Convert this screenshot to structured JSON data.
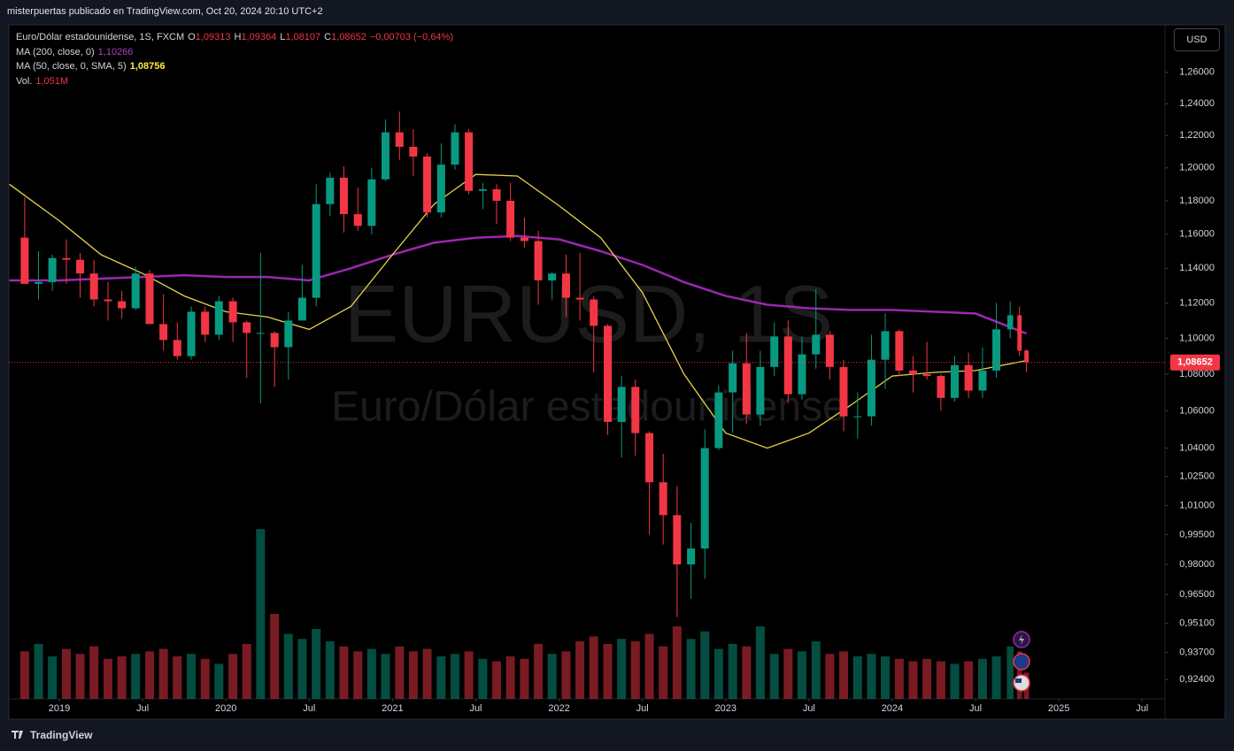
{
  "header": {
    "publisher": "misterpuertas publicado en TradingView.com, Oct 20, 2024 20:10 UTC+2",
    "currency": "USD",
    "footer": "TradingView"
  },
  "chart_data": {
    "type": "candlestick",
    "symbol": "Euro/Dólar estadounidense, 1S, FXCM",
    "ohlc_legend": [
      {
        "label": "O",
        "value": "1,09313"
      },
      {
        "label": "H",
        "value": "1,09364"
      },
      {
        "label": "L",
        "value": "1,08107"
      },
      {
        "label": "C",
        "value": "1,08652"
      }
    ],
    "change": "−0,00703 (−0,64%)",
    "watermark": [
      "EURUSD, 1S",
      "Euro/Dólar estadounidense"
    ],
    "last_price_label": "1,08652",
    "up_color": "#089981",
    "down_color": "#f23645",
    "x": [
      2018.792,
      2018.875,
      2018.958,
      2019.042,
      2019.125,
      2019.208,
      2019.292,
      2019.375,
      2019.458,
      2019.542,
      2019.625,
      2019.708,
      2019.792,
      2019.875,
      2019.958,
      2020.042,
      2020.125,
      2020.208,
      2020.292,
      2020.375,
      2020.458,
      2020.542,
      2020.625,
      2020.708,
      2020.792,
      2020.875,
      2020.958,
      2021.042,
      2021.125,
      2021.208,
      2021.292,
      2021.375,
      2021.458,
      2021.542,
      2021.625,
      2021.708,
      2021.792,
      2021.875,
      2021.958,
      2022.042,
      2022.125,
      2022.208,
      2022.292,
      2022.375,
      2022.458,
      2022.542,
      2022.625,
      2022.708,
      2022.792,
      2022.875,
      2022.958,
      2023.042,
      2023.125,
      2023.208,
      2023.292,
      2023.375,
      2023.458,
      2023.542,
      2023.625,
      2023.708,
      2023.792,
      2023.875,
      2023.958,
      2024.042,
      2024.125,
      2024.208,
      2024.292,
      2024.375,
      2024.458,
      2024.542,
      2024.625,
      2024.708,
      2024.764,
      2024.806
    ],
    "open": [
      1.158,
      1.131,
      1.132,
      1.146,
      1.145,
      1.137,
      1.122,
      1.121,
      1.117,
      1.137,
      1.108,
      1.099,
      1.09,
      1.115,
      1.102,
      1.121,
      1.109,
      1.103,
      1.103,
      1.095,
      1.11,
      1.123,
      1.178,
      1.194,
      1.172,
      1.165,
      1.193,
      1.222,
      1.213,
      1.207,
      1.173,
      1.202,
      1.222,
      1.186,
      1.187,
      1.18,
      1.158,
      1.156,
      1.133,
      1.137,
      1.123,
      1.122,
      1.107,
      1.054,
      1.073,
      1.048,
      1.022,
      1.005,
      0.98,
      0.988,
      1.04,
      1.07,
      1.086,
      1.058,
      1.084,
      1.101,
      1.069,
      1.091,
      1.102,
      1.084,
      1.057,
      1.057,
      1.088,
      1.104,
      1.082,
      1.08,
      1.079,
      1.067,
      1.085,
      1.071,
      1.082,
      1.105,
      1.113,
      1.09313
    ],
    "high": [
      1.182,
      1.15,
      1.148,
      1.157,
      1.149,
      1.145,
      1.132,
      1.127,
      1.141,
      1.139,
      1.125,
      1.109,
      1.118,
      1.118,
      1.124,
      1.123,
      1.11,
      1.149,
      1.104,
      1.115,
      1.142,
      1.19,
      1.197,
      1.201,
      1.188,
      1.2,
      1.23,
      1.235,
      1.224,
      1.209,
      1.215,
      1.227,
      1.224,
      1.191,
      1.19,
      1.191,
      1.17,
      1.162,
      1.138,
      1.148,
      1.149,
      1.124,
      1.108,
      1.079,
      1.077,
      1.049,
      1.037,
      1.02,
      1.001,
      1.05,
      1.074,
      1.093,
      1.103,
      1.093,
      1.109,
      1.11,
      1.101,
      1.128,
      1.104,
      1.088,
      1.07,
      1.102,
      1.114,
      1.105,
      1.09,
      1.098,
      1.08,
      1.09,
      1.092,
      1.095,
      1.12,
      1.121,
      1.118,
      1.09364
    ],
    "low": [
      1.132,
      1.122,
      1.127,
      1.131,
      1.123,
      1.118,
      1.11,
      1.111,
      1.116,
      1.11,
      1.093,
      1.088,
      1.088,
      1.098,
      1.099,
      1.098,
      1.078,
      1.064,
      1.073,
      1.077,
      1.11,
      1.118,
      1.171,
      1.161,
      1.162,
      1.16,
      1.192,
      1.205,
      1.195,
      1.17,
      1.17,
      1.199,
      1.184,
      1.175,
      1.166,
      1.156,
      1.152,
      1.119,
      1.122,
      1.112,
      1.11,
      1.081,
      1.047,
      1.035,
      1.036,
      0.995,
      0.99,
      0.954,
      0.963,
      0.973,
      1.039,
      1.048,
      1.053,
      1.052,
      1.079,
      1.064,
      1.066,
      1.083,
      1.077,
      1.049,
      1.045,
      1.052,
      1.072,
      1.079,
      1.07,
      1.077,
      1.06,
      1.065,
      1.067,
      1.067,
      1.078,
      1.1,
      1.09,
      1.08107
    ],
    "close": [
      1.131,
      1.132,
      1.146,
      1.145,
      1.137,
      1.122,
      1.121,
      1.117,
      1.137,
      1.108,
      1.099,
      1.09,
      1.115,
      1.102,
      1.121,
      1.109,
      1.103,
      1.103,
      1.095,
      1.11,
      1.123,
      1.178,
      1.194,
      1.172,
      1.165,
      1.193,
      1.222,
      1.213,
      1.207,
      1.173,
      1.202,
      1.222,
      1.186,
      1.187,
      1.18,
      1.158,
      1.156,
      1.133,
      1.137,
      1.123,
      1.122,
      1.107,
      1.054,
      1.073,
      1.048,
      1.022,
      1.005,
      0.98,
      0.988,
      1.04,
      1.07,
      1.086,
      1.058,
      1.084,
      1.101,
      1.069,
      1.091,
      1.102,
      1.084,
      1.057,
      1.057,
      1.088,
      1.104,
      1.082,
      1.08,
      1.079,
      1.067,
      1.085,
      1.071,
      1.082,
      1.105,
      1.113,
      1.093,
      1.08652
    ],
    "volume": [
      1.9,
      2.2,
      1.7,
      2.0,
      1.8,
      2.1,
      1.6,
      1.7,
      1.8,
      1.9,
      2.0,
      1.7,
      1.8,
      1.6,
      1.4,
      1.8,
      2.2,
      6.8,
      3.4,
      2.6,
      2.4,
      2.8,
      2.3,
      2.1,
      1.9,
      2.0,
      1.8,
      2.1,
      1.9,
      2.0,
      1.7,
      1.8,
      1.9,
      1.6,
      1.5,
      1.7,
      1.6,
      2.2,
      1.8,
      1.9,
      2.3,
      2.5,
      2.2,
      2.4,
      2.3,
      2.6,
      2.1,
      2.9,
      2.4,
      2.7,
      2.0,
      2.2,
      2.1,
      2.9,
      1.8,
      2.0,
      1.9,
      2.3,
      1.8,
      1.9,
      1.7,
      1.8,
      1.7,
      1.6,
      1.5,
      1.6,
      1.5,
      1.4,
      1.5,
      1.6,
      1.7,
      2.1,
      1.9,
      1.051
    ],
    "vlim": [
      0,
      27
    ],
    "volume_legend": {
      "name": "Vol.",
      "value_label": "1,051M"
    },
    "indicators": [
      {
        "name": "MA (200, close, 0)",
        "value_label": "1,10266",
        "color": "#9c27b0",
        "label_color": "#ab47bc",
        "x": [
          2018.7,
          2019.0,
          2019.25,
          2019.5,
          2019.75,
          2020.0,
          2020.25,
          2020.5,
          2020.75,
          2021.0,
          2021.25,
          2021.5,
          2021.75,
          2022.0,
          2022.25,
          2022.5,
          2022.75,
          2023.0,
          2023.25,
          2023.5,
          2023.75,
          2024.0,
          2024.25,
          2024.5,
          2024.806
        ],
        "values": [
          1.133,
          1.133,
          1.134,
          1.135,
          1.136,
          1.135,
          1.135,
          1.133,
          1.14,
          1.148,
          1.155,
          1.158,
          1.159,
          1.157,
          1.15,
          1.142,
          1.132,
          1.124,
          1.119,
          1.117,
          1.116,
          1.116,
          1.115,
          1.114,
          1.10266
        ]
      },
      {
        "name": "MA (50, close, 0, SMA, 5)",
        "value_label": "1,08756",
        "color": "#e6d34a",
        "label_color": "#ffeb3b",
        "x": [
          2018.7,
          2019.0,
          2019.25,
          2019.5,
          2019.75,
          2020.0,
          2020.25,
          2020.5,
          2020.75,
          2021.0,
          2021.25,
          2021.5,
          2021.75,
          2022.0,
          2022.25,
          2022.5,
          2022.75,
          2023.0,
          2023.25,
          2023.5,
          2023.75,
          2024.0,
          2024.25,
          2024.5,
          2024.806
        ],
        "values": [
          1.19,
          1.168,
          1.148,
          1.137,
          1.124,
          1.115,
          1.112,
          1.105,
          1.118,
          1.148,
          1.178,
          1.196,
          1.195,
          1.177,
          1.158,
          1.126,
          1.08,
          1.048,
          1.04,
          1.048,
          1.063,
          1.079,
          1.081,
          1.082,
          1.08756
        ]
      }
    ],
    "log": true,
    "ylim": [
      0.915,
      1.291
    ],
    "yticks": [
      {
        "value": 1.26,
        "label": "1,26000"
      },
      {
        "value": 1.24,
        "label": "1,24000"
      },
      {
        "value": 1.22,
        "label": "1,22000"
      },
      {
        "value": 1.2,
        "label": "1,20000"
      },
      {
        "value": 1.18,
        "label": "1,18000"
      },
      {
        "value": 1.16,
        "label": "1,16000"
      },
      {
        "value": 1.14,
        "label": "1,14000"
      },
      {
        "value": 1.12,
        "label": "1,12000"
      },
      {
        "value": 1.1,
        "label": "1,10000"
      },
      {
        "value": 1.08,
        "label": "1,08000"
      },
      {
        "value": 1.06,
        "label": "1,06000"
      },
      {
        "value": 1.04,
        "label": "1,04000"
      },
      {
        "value": 1.025,
        "label": "1,02500"
      },
      {
        "value": 1.01,
        "label": "1,01000"
      },
      {
        "value": 0.995,
        "label": "0,99500"
      },
      {
        "value": 0.98,
        "label": "0,98000"
      },
      {
        "value": 0.965,
        "label": "0,96500"
      },
      {
        "value": 0.951,
        "label": "0,95100"
      },
      {
        "value": 0.937,
        "label": "0,93700"
      },
      {
        "value": 0.924,
        "label": "0,92400"
      }
    ],
    "xlim": [
      2018.697,
      2025.637
    ],
    "xticks": [
      2019,
      {
        "value": 2019.5,
        "label": "Jul"
      },
      2020,
      {
        "value": 2020.5,
        "label": "Jul"
      },
      2021,
      {
        "value": 2021.5,
        "label": "Jul"
      },
      2022,
      {
        "value": 2022.5,
        "label": "Jul"
      },
      2023,
      {
        "value": 2023.5,
        "label": "Jul"
      },
      2024,
      {
        "value": 2024.5,
        "label": "Jul"
      },
      2025,
      {
        "value": 2025.5,
        "label": "Jul"
      }
    ]
  }
}
